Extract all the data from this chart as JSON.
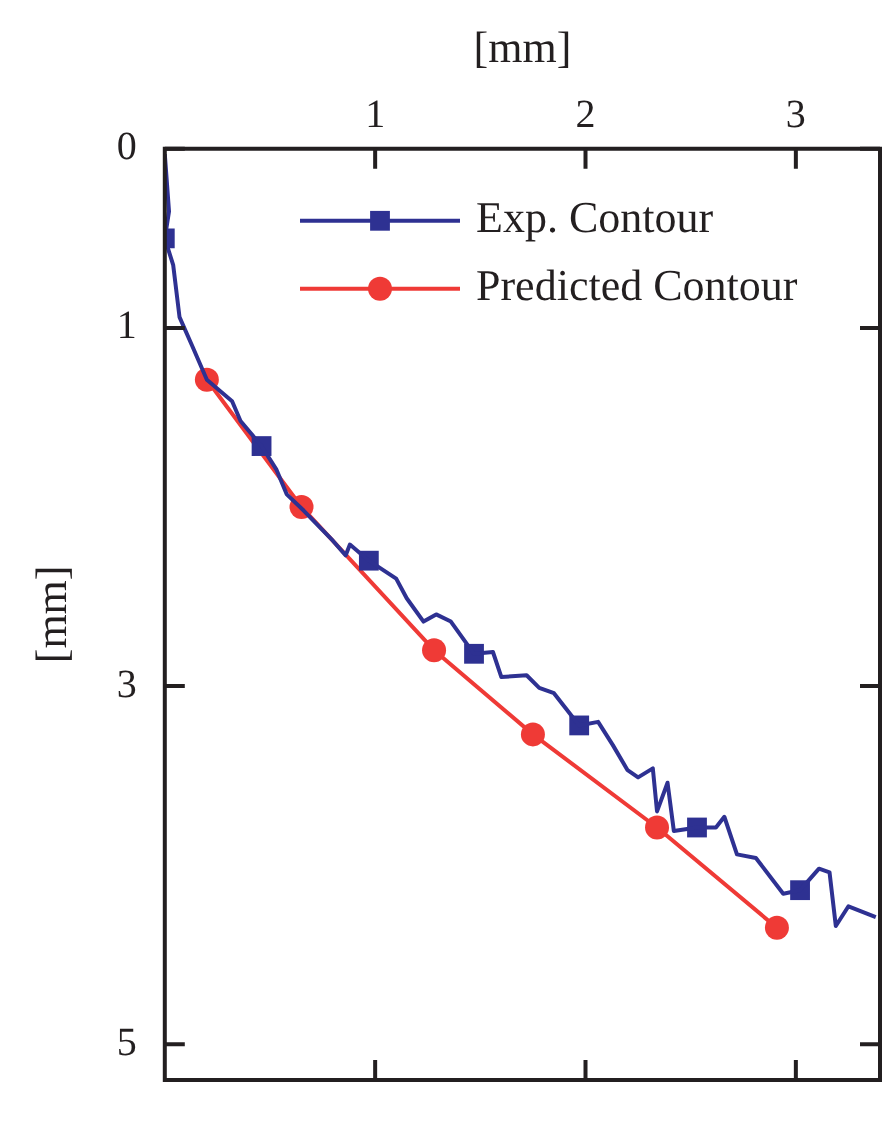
{
  "chart_data": {
    "type": "line",
    "xlabel": "[mm]",
    "ylabel": "[mm]",
    "xlim": [
      0,
      3.4
    ],
    "xticks": [
      1,
      2,
      3
    ],
    "ylim": [
      5.2,
      0
    ],
    "yticks": [
      0,
      1,
      3,
      5
    ],
    "grid": false,
    "legend": "top right",
    "series": [
      {
        "color": "#2e3192",
        "marker": "none",
        "x": [
          0,
          0.02,
          0,
          0.04,
          0.07,
          0.13,
          0.2,
          0.32,
          0.36,
          0.46,
          0.53,
          0.58,
          0.66,
          0.8,
          0.86,
          0.88,
          0.97,
          1.1,
          1.15,
          1.23,
          1.29,
          1.36,
          1.47,
          1.56,
          1.6,
          1.72,
          1.78,
          1.85,
          1.97,
          2.06,
          2.13,
          2.2,
          2.25,
          2.32,
          2.34,
          2.39,
          2.42,
          2.53,
          2.62,
          2.66,
          2.72,
          2.81,
          2.94,
          3.02,
          3.11,
          3.16,
          3.19,
          3.25,
          3.38
        ],
        "values": [
          0.03,
          0.35,
          0.5,
          0.65,
          0.94,
          1.1,
          1.29,
          1.41,
          1.52,
          1.66,
          1.79,
          1.93,
          2.02,
          2.19,
          2.27,
          2.21,
          2.3,
          2.4,
          2.51,
          2.64,
          2.6,
          2.64,
          2.82,
          2.81,
          2.95,
          2.94,
          3.01,
          3.04,
          3.22,
          3.2,
          3.33,
          3.47,
          3.51,
          3.46,
          3.7,
          3.54,
          3.81,
          3.79,
          3.79,
          3.73,
          3.94,
          3.96,
          4.16,
          4.14,
          4.02,
          4.04,
          4.34,
          4.23,
          4.29
        ]
      },
      {
        "type": "scatter",
        "name": "Exp. Contour",
        "color": "#2e3192",
        "marker": "square",
        "x": [
          0,
          0.46,
          0.97,
          1.47,
          1.97,
          2.53,
          3.02
        ],
        "values": [
          0.5,
          1.66,
          2.3,
          2.82,
          3.22,
          3.79,
          4.14
        ]
      },
      {
        "name": "Predicted Contour",
        "color": "#ef3a36",
        "marker": "circle",
        "x": [
          0.2,
          0.65,
          1.28,
          1.75,
          2.34,
          2.91
        ],
        "values": [
          1.29,
          2.0,
          2.8,
          3.27,
          3.79,
          4.35
        ]
      }
    ]
  }
}
